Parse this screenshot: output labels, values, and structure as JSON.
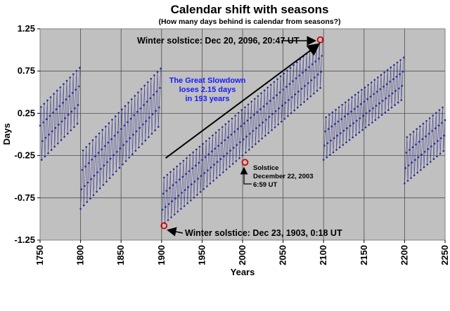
{
  "chart_data": {
    "type": "line",
    "title": "Calendar shift with seasons",
    "subtitle": "(How many days behind is calendar from seasons?)",
    "xlabel": "Years",
    "ylabel": "Days",
    "xlim": [
      1750,
      2250
    ],
    "ylim": [
      -1.25,
      1.25
    ],
    "x_ticks": [
      "1750",
      "1800",
      "1850",
      "1900",
      "1950",
      "2000",
      "2050",
      "2100",
      "2150",
      "2200",
      "2250"
    ],
    "y_ticks": [
      "1.25",
      "0.75",
      "0.25",
      "-0.25",
      "-0.75",
      "-1.25"
    ],
    "grid": true,
    "background_color": "#c0c0c0",
    "series_color": "#2b2b8f",
    "series": [
      {
        "description_of_pattern": "yearly solstice offset, 4-year leap cycle, drifting up ~0.0111 day/yr and resetting at non-leap century years",
        "segments": [
          {
            "start_year": 1750,
            "end_year": 1799,
            "min": -0.3,
            "max": 0.79
          },
          {
            "start_year": 1800,
            "end_year": 1899,
            "min": -0.88,
            "max": 0.78
          },
          {
            "start_year": 1900,
            "end_year": 2099,
            "min": -1.08,
            "max": 1.12
          },
          {
            "start_year": 2100,
            "end_year": 2199,
            "min": -0.3,
            "max": 0.91
          },
          {
            "start_year": 2200,
            "end_year": 2250,
            "min": -0.58,
            "max": 0.32
          }
        ]
      }
    ],
    "highlight_points": [
      {
        "x": 1903,
        "y": -1.08
      },
      {
        "x": 2003,
        "y": -0.33
      },
      {
        "x": 2096,
        "y": 1.12
      }
    ],
    "arrow": {
      "x_start": 1905,
      "y_start": -0.28,
      "x_end": 2093,
      "y_end": 1.06
    }
  },
  "annotations": {
    "winter_2096": "Winter solstice: Dec 20, 2096, 20:47 UT",
    "winter_1903": "Winter solstice: Dec 23, 1903, 0:18 UT",
    "solstice_2003_line1": "Solstice",
    "solstice_2003_line2": "December 22, 2003",
    "solstice_2003_line3": "6:59 UT",
    "slowdown_line1": "The Great Slowdown",
    "slowdown_line2": "loses 2.15 days",
    "slowdown_line3": "in 193 years"
  }
}
